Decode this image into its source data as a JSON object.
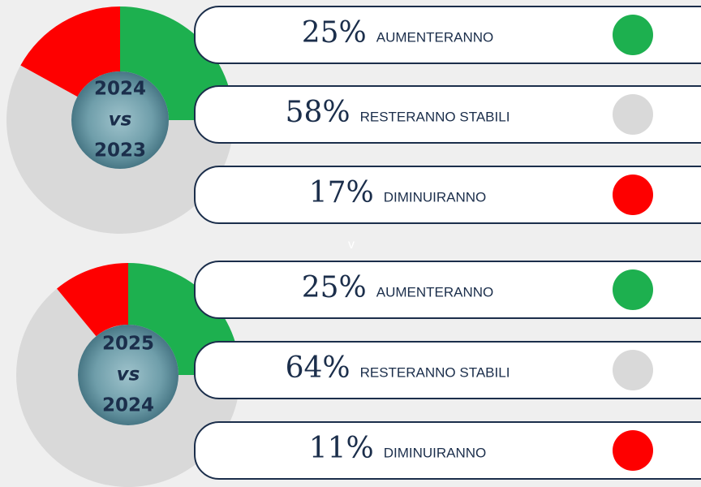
{
  "chart_data": [
    {
      "type": "donut",
      "center_label": [
        "2024",
        "vs",
        "2023"
      ],
      "categories": [
        "AUMENTERANNO",
        "RESTERANNO STABILI",
        "DIMINUIRANNO"
      ],
      "values": [
        25,
        58,
        17
      ],
      "value_labels": [
        "25%",
        "58%",
        "17%"
      ],
      "colors": [
        "#1db04f",
        "#d9d9d9",
        "#fe0000"
      ]
    },
    {
      "type": "donut",
      "center_label": [
        "2025",
        "vs",
        "2024"
      ],
      "categories": [
        "AUMENTERANNO",
        "RESTERANNO STABILI",
        "DIMINUIRANNO"
      ],
      "values": [
        25,
        64,
        11
      ],
      "value_labels": [
        "25%",
        "64%",
        "11%"
      ],
      "colors": [
        "#1db04f",
        "#d9d9d9",
        "#fe0000"
      ]
    }
  ],
  "separator": "v"
}
